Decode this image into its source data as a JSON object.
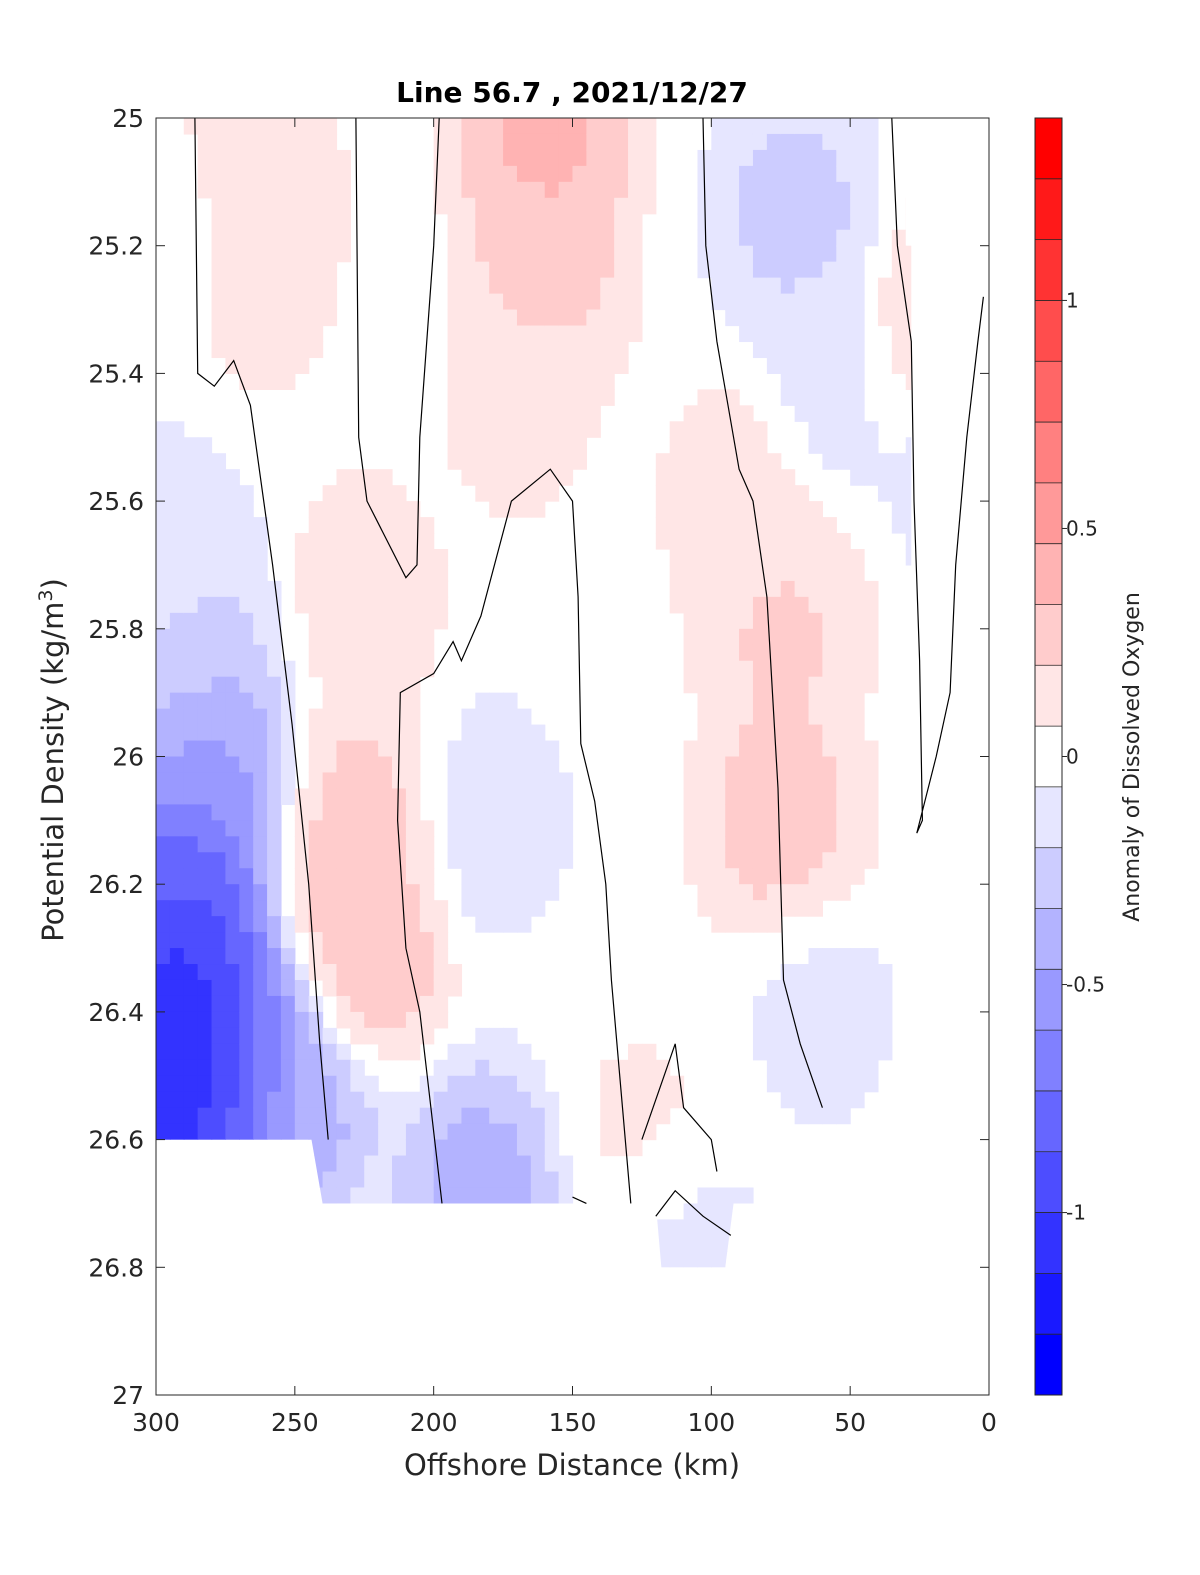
{
  "chart_data": {
    "type": "heatmap",
    "title": "Line 56.7 , 2021/12/27",
    "xlabel": "Offshore Distance (km)",
    "ylabel_main": "Potential Density (kg/m",
    "ylabel_sup": "3",
    "ylabel_close": ")",
    "colorbar_label": "Anomaly of Dissolved Oxygen",
    "x_reversed": true,
    "y_reversed": true,
    "xlim": [
      0,
      300
    ],
    "ylim": [
      25,
      27
    ],
    "x_ticks": [
      "300",
      "250",
      "200",
      "150",
      "100",
      "50",
      "0"
    ],
    "x_tick_values": [
      300,
      250,
      200,
      150,
      100,
      50,
      0
    ],
    "y_ticks": [
      "25",
      "25.2",
      "25.4",
      "25.6",
      "25.8",
      "26",
      "26.2",
      "26.4",
      "26.6",
      "26.8",
      "27"
    ],
    "y_tick_values": [
      25,
      25.2,
      25.4,
      25.6,
      25.8,
      26,
      26.2,
      26.4,
      26.6,
      26.8,
      27
    ],
    "clim": [
      -1.4,
      1.4
    ],
    "colorbar_ticks": [
      "1",
      "0.5",
      "0",
      "-0.5",
      "-1"
    ],
    "colorbar_tick_values": [
      1,
      0.5,
      0,
      -0.5,
      -1
    ],
    "grid": false,
    "colors": {
      "negative_max": "#0000ff",
      "zero": "#ffffff",
      "positive_max": "#ff0000"
    },
    "field_anchors": [
      {
        "x": 290,
        "y": 26.4,
        "v": -1.3
      },
      {
        "x": 285,
        "y": 26.55,
        "v": -1.2
      },
      {
        "x": 290,
        "y": 26.2,
        "v": -0.95
      },
      {
        "x": 280,
        "y": 26.0,
        "v": -0.55
      },
      {
        "x": 285,
        "y": 25.8,
        "v": -0.25
      },
      {
        "x": 295,
        "y": 25.65,
        "v": -0.12
      },
      {
        "x": 270,
        "y": 26.45,
        "v": -0.8
      },
      {
        "x": 250,
        "y": 26.55,
        "v": -0.45
      },
      {
        "x": 297,
        "y": 25.2,
        "v": -0.1
      },
      {
        "x": 225,
        "y": 26.3,
        "v": 0.35
      },
      {
        "x": 225,
        "y": 26.1,
        "v": 0.28
      },
      {
        "x": 225,
        "y": 25.75,
        "v": 0.15
      },
      {
        "x": 265,
        "y": 25.1,
        "v": 0.22
      },
      {
        "x": 265,
        "y": 25.25,
        "v": 0.14
      },
      {
        "x": 160,
        "y": 25.05,
        "v": 0.42
      },
      {
        "x": 160,
        "y": 25.25,
        "v": 0.28
      },
      {
        "x": 170,
        "y": 25.45,
        "v": 0.12
      },
      {
        "x": 75,
        "y": 26.1,
        "v": 0.3
      },
      {
        "x": 75,
        "y": 25.8,
        "v": 0.25
      },
      {
        "x": 90,
        "y": 25.6,
        "v": 0.15
      },
      {
        "x": 20,
        "y": 25.35,
        "v": 0.28
      },
      {
        "x": 180,
        "y": 26.1,
        "v": -0.15
      },
      {
        "x": 183,
        "y": 26.68,
        "v": -0.45
      },
      {
        "x": 70,
        "y": 25.15,
        "v": -0.28
      },
      {
        "x": 55,
        "y": 25.4,
        "v": -0.15
      },
      {
        "x": 7,
        "y": 25.5,
        "v": -0.3
      },
      {
        "x": 60,
        "y": 26.4,
        "v": -0.12
      },
      {
        "x": 110,
        "y": 26.78,
        "v": -0.15
      },
      {
        "x": 125,
        "y": 26.6,
        "v": 0.1
      }
    ]
  }
}
